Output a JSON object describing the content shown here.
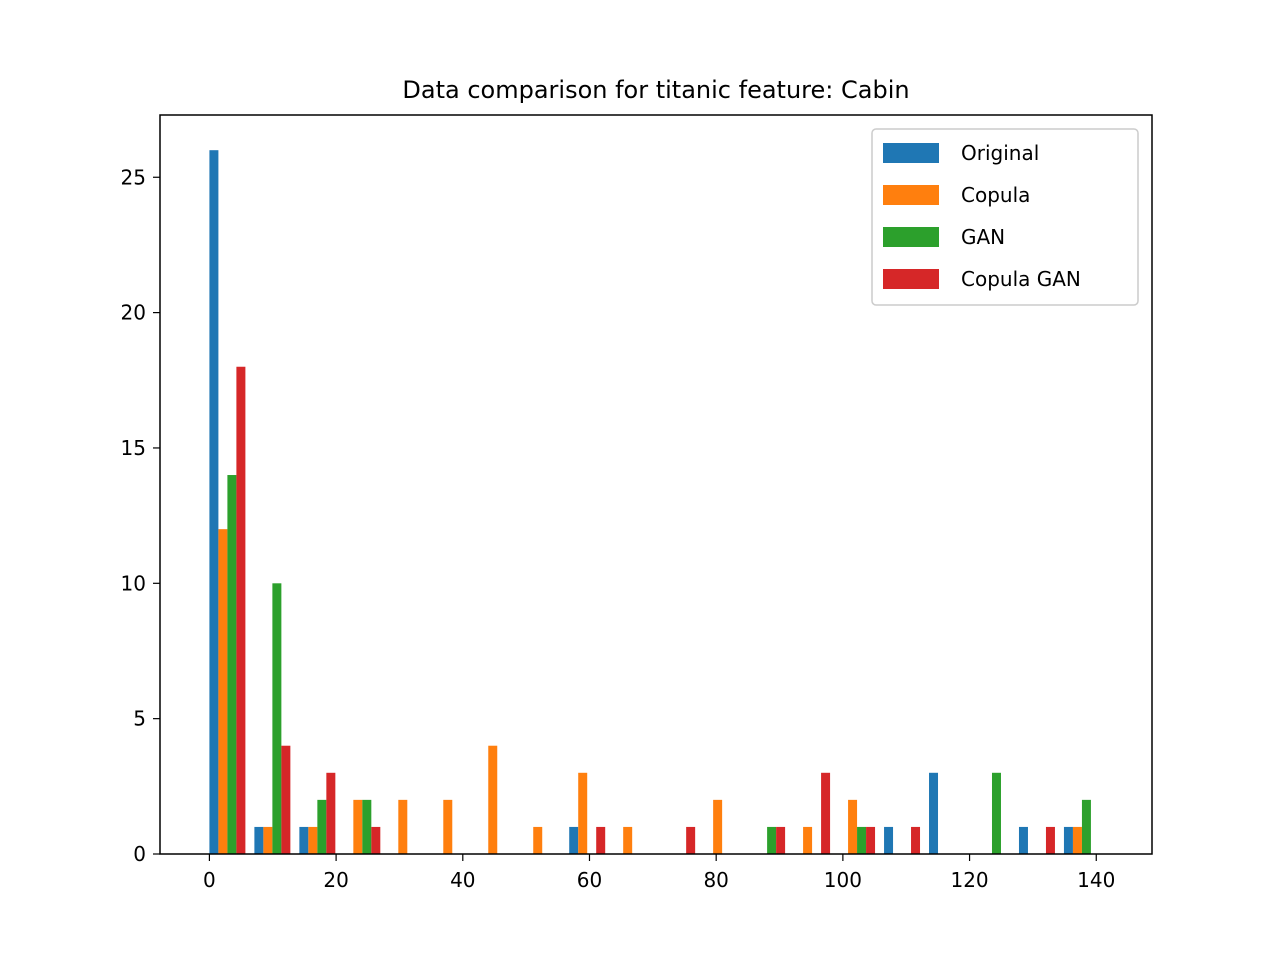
{
  "chart_data": {
    "type": "bar",
    "title": "Data comparison for titanic feature: Cabin",
    "xlabel": "",
    "ylabel": "",
    "xlim": [
      -7.8,
      148.8
    ],
    "ylim": [
      0,
      27.3
    ],
    "xticks": [
      0,
      20,
      40,
      60,
      80,
      100,
      120,
      140
    ],
    "yticks": [
      0,
      5,
      10,
      15,
      20,
      25
    ],
    "bin_edges": [
      0,
      7.1,
      14.2,
      21.3,
      28.4,
      35.5,
      42.6,
      49.7,
      56.8,
      63.9,
      71.0,
      78.1,
      85.2,
      92.3,
      99.4,
      106.5,
      113.6,
      120.7,
      127.8,
      134.9,
      142.0
    ],
    "grid": false,
    "legend_position": "top-right",
    "series": [
      {
        "name": "Original",
        "color": "#1f77b4",
        "values": [
          26,
          1,
          1,
          0,
          0,
          0,
          0,
          0,
          1,
          0,
          0,
          0,
          0,
          0,
          0,
          1,
          3,
          0,
          1,
          1
        ]
      },
      {
        "name": "Copula",
        "color": "#ff7f0e",
        "values": [
          12,
          1,
          1,
          2,
          2,
          2,
          4,
          1,
          3,
          1,
          0,
          2,
          0,
          1,
          2,
          0,
          0,
          0,
          0,
          1
        ]
      },
      {
        "name": "GAN",
        "color": "#2ca02c",
        "values": [
          14,
          10,
          2,
          2,
          0,
          0,
          0,
          0,
          0,
          0,
          0,
          0,
          1,
          0,
          1,
          0,
          0,
          3,
          0,
          2
        ]
      },
      {
        "name": "Copula GAN",
        "color": "#d62728",
        "values": [
          18,
          4,
          3,
          1,
          0,
          0,
          0,
          0,
          1,
          0,
          1,
          0,
          1,
          3,
          1,
          1,
          0,
          0,
          1,
          0
        ]
      }
    ]
  }
}
